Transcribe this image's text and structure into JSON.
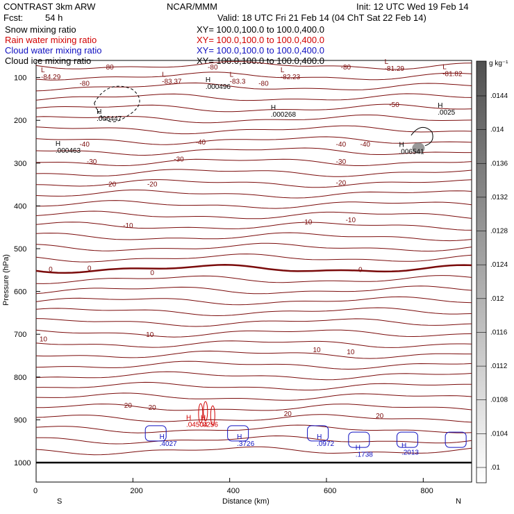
{
  "header": {
    "model": "CONTRAST  3km ARW",
    "center": "NCAR/MMM",
    "init": "Init: 12 UTC Wed 19 Feb 14",
    "fcst_label": "Fcst:",
    "fcst_value": "54 h",
    "valid": "Valid: 18 UTC Fri 21 Feb 14 (04 ChT Sat 22 Feb 14)",
    "fields": [
      {
        "name": "Snow mixing ratio",
        "xy": "XY= 100.0,100.0 to 100.0,400.0",
        "color": "#000000"
      },
      {
        "name": "Rain water mixing ratio",
        "xy": "XY= 100.0,100.0 to 100.0,400.0",
        "color": "#d00000"
      },
      {
        "name": "Cloud water mixing ratio",
        "xy": "XY= 100.0,100.0 to 100.0,400.0",
        "color": "#1010c0"
      },
      {
        "name": "Cloud ice mixing ratio",
        "xy": "XY= 100.0,100.0 to 100.0,400.0",
        "color": "#000000"
      }
    ]
  },
  "colors": {
    "temperature_contour": "#7a0a0a",
    "rain": "#d00000",
    "cloud_water": "#1010c0",
    "ice": "#000000"
  },
  "chart_data": {
    "type": "cross-section",
    "xlabel": "Distance (km)",
    "ylabel": "Pressure (hPa)",
    "xlim": [
      0,
      900
    ],
    "ylim": [
      1000,
      60
    ],
    "y_scale": "linear, inverted",
    "x_ticks": [
      0,
      200,
      400,
      600,
      800
    ],
    "y_ticks": [
      100,
      200,
      300,
      400,
      500,
      600,
      700,
      800,
      900,
      1000
    ],
    "end_labels": {
      "left": "S",
      "right": "N"
    },
    "grid": false,
    "temperature_contour_labels": [
      {
        "x": 150,
        "p": 75,
        "text": "-80"
      },
      {
        "x": 100,
        "p": 113,
        "text": "-80"
      },
      {
        "x": 365,
        "p": 75,
        "text": "-80"
      },
      {
        "x": 470,
        "p": 113,
        "text": "-80"
      },
      {
        "x": 640,
        "p": 75,
        "text": "-80"
      },
      {
        "x": 740,
        "p": 162,
        "text": "-50"
      },
      {
        "x": 630,
        "p": 255,
        "text": "-40"
      },
      {
        "x": 680,
        "p": 255,
        "text": "-40"
      },
      {
        "x": 340,
        "p": 250,
        "text": "-40"
      },
      {
        "x": 100,
        "p": 255,
        "text": "-40"
      },
      {
        "x": 115,
        "p": 295,
        "text": "-30"
      },
      {
        "x": 295,
        "p": 290,
        "text": "-30"
      },
      {
        "x": 630,
        "p": 295,
        "text": "-30"
      },
      {
        "x": 155,
        "p": 348,
        "text": "-20"
      },
      {
        "x": 240,
        "p": 348,
        "text": "-20"
      },
      {
        "x": 630,
        "p": 345,
        "text": "-20"
      },
      {
        "x": 190,
        "p": 445,
        "text": "-10"
      },
      {
        "x": 560,
        "p": 437,
        "text": "-10"
      },
      {
        "x": 650,
        "p": 432,
        "text": "-10"
      },
      {
        "x": 30,
        "p": 547,
        "text": "0"
      },
      {
        "x": 110,
        "p": 545,
        "text": "0"
      },
      {
        "x": 240,
        "p": 555,
        "text": "0"
      },
      {
        "x": 670,
        "p": 548,
        "text": "0"
      },
      {
        "x": 15,
        "p": 710,
        "text": "10"
      },
      {
        "x": 235,
        "p": 700,
        "text": "10"
      },
      {
        "x": 580,
        "p": 735,
        "text": "10"
      },
      {
        "x": 650,
        "p": 740,
        "text": "10"
      },
      {
        "x": 190,
        "p": 865,
        "text": "20"
      },
      {
        "x": 240,
        "p": 870,
        "text": "20"
      },
      {
        "x": 520,
        "p": 885,
        "text": "20"
      },
      {
        "x": 710,
        "p": 890,
        "text": "20"
      }
    ],
    "extrema_labels": [
      {
        "x": 10,
        "p": 88,
        "mark": "L",
        "value": "-84.29",
        "color": "#7a0a0a"
      },
      {
        "x": 260,
        "p": 98,
        "mark": "L",
        "value": "-83.37",
        "color": "#7a0a0a"
      },
      {
        "x": 400,
        "p": 98,
        "mark": "L",
        "value": "-83.3",
        "color": "#7a0a0a"
      },
      {
        "x": 505,
        "p": 88,
        "mark": "L",
        "value": "-82.23",
        "color": "#7a0a0a"
      },
      {
        "x": 720,
        "p": 68,
        "mark": "L",
        "value": "-81.29",
        "color": "#7a0a0a"
      },
      {
        "x": 840,
        "p": 80,
        "mark": "L",
        "value": "-81.82",
        "color": "#7a0a0a"
      },
      {
        "x": 350,
        "p": 110,
        "mark": "H",
        "value": ".000496",
        "color": "#000000"
      },
      {
        "x": 125,
        "p": 185,
        "mark": "H",
        "value": ".006447",
        "color": "#000000"
      },
      {
        "x": 485,
        "p": 175,
        "mark": "H",
        "value": ".000268",
        "color": "#000000"
      },
      {
        "x": 830,
        "p": 170,
        "mark": "H",
        "value": ".0025",
        "color": "#000000"
      },
      {
        "x": 40,
        "p": 260,
        "mark": "H",
        "value": ".000463",
        "color": "#000000"
      },
      {
        "x": 750,
        "p": 262,
        "mark": "H",
        "value": ".006541",
        "color": "#000000"
      },
      {
        "x": 310,
        "p": 900,
        "mark": "H",
        "value": ".04504",
        "color": "#d00000"
      },
      {
        "x": 340,
        "p": 900,
        "mark": "H",
        "value": ".0256",
        "color": "#d00000"
      },
      {
        "x": 255,
        "p": 945,
        "mark": "H",
        "value": ".4027",
        "color": "#1010c0"
      },
      {
        "x": 415,
        "p": 945,
        "mark": "H",
        "value": ".3726",
        "color": "#1010c0"
      },
      {
        "x": 580,
        "p": 945,
        "mark": "H",
        "value": ".0972",
        "color": "#1010c0"
      },
      {
        "x": 660,
        "p": 970,
        "mark": "H",
        "value": ".1738",
        "color": "#1010c0"
      },
      {
        "x": 755,
        "p": 965,
        "mark": "H",
        "value": ".2013",
        "color": "#1010c0"
      }
    ],
    "colorbar": {
      "units": "g kg⁻¹",
      "ticks": [
        ".0144",
        ".014",
        ".0136",
        ".0132",
        ".0128",
        ".0124",
        ".012",
        ".0116",
        ".0112",
        ".0108",
        ".0104",
        ".01"
      ]
    }
  }
}
